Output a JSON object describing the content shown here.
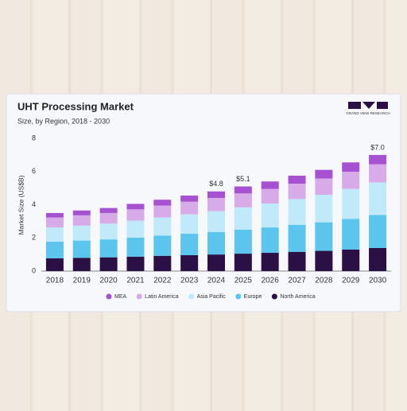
{
  "chart_data": {
    "type": "stacked_bar",
    "title": "UHT Processing Market",
    "subtitle": "Size, by Region, 2018 - 2030",
    "logo_text": "GRAND VIEW RESEARCH",
    "y_label": "Market Size (US$B)",
    "categories": [
      "2018",
      "2019",
      "2020",
      "2021",
      "2022",
      "2023",
      "2024",
      "2025",
      "2026",
      "2027",
      "2028",
      "2029",
      "2030"
    ],
    "series": [
      {
        "name": "North America",
        "color": "#2b1046",
        "values": [
          0.77,
          0.8,
          0.83,
          0.87,
          0.92,
          0.96,
          1.0,
          1.05,
          1.1,
          1.16,
          1.22,
          1.3,
          1.39
        ]
      },
      {
        "name": "Europe",
        "color": "#5bc5ee",
        "values": [
          1.0,
          1.04,
          1.08,
          1.15,
          1.22,
          1.29,
          1.36,
          1.44,
          1.53,
          1.63,
          1.72,
          1.85,
          1.99
        ]
      },
      {
        "name": "Asia Pacific",
        "color": "#c0eaf9",
        "values": [
          0.86,
          0.9,
          0.95,
          1.02,
          1.09,
          1.17,
          1.25,
          1.35,
          1.44,
          1.55,
          1.66,
          1.8,
          1.96
        ]
      },
      {
        "name": "Latin America",
        "color": "#d7abe8",
        "values": [
          0.6,
          0.62,
          0.64,
          0.68,
          0.72,
          0.76,
          0.8,
          0.84,
          0.88,
          0.93,
          0.98,
          1.04,
          1.1
        ]
      },
      {
        "name": "MEA",
        "color": "#a650d2",
        "values": [
          0.27,
          0.29,
          0.3,
          0.33,
          0.35,
          0.37,
          0.39,
          0.42,
          0.45,
          0.48,
          0.52,
          0.56,
          0.56
        ]
      }
    ],
    "annotations": [
      {
        "category": "2024",
        "text": "$4.8"
      },
      {
        "category": "2025",
        "text": "$5.1"
      },
      {
        "category": "2030",
        "text": "$7.0"
      }
    ],
    "ylim": [
      0,
      8
    ],
    "yticks": [
      0,
      2,
      4,
      6,
      8
    ],
    "grid": false
  }
}
